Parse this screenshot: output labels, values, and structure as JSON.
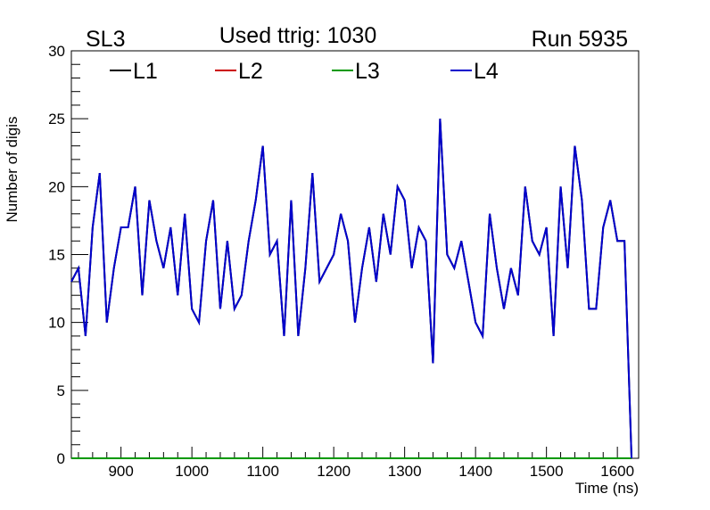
{
  "chart_data": {
    "type": "line",
    "title": "Used ttrig: 1030",
    "corner_left": "SL3",
    "corner_right": "Run 5935",
    "xlabel": "Time (ns)",
    "ylabel": "Number of digis",
    "xlim": [
      830,
      1630
    ],
    "ylim": [
      0,
      30
    ],
    "xticks": [
      900,
      1000,
      1100,
      1200,
      1300,
      1400,
      1500,
      1600
    ],
    "yticks": [
      0,
      5,
      10,
      15,
      20,
      25,
      30
    ],
    "grid": false,
    "legend_position": "top",
    "x_start": 830,
    "x_step": 10,
    "series": [
      {
        "name": "L1",
        "color": "#000000",
        "values": [
          13,
          14,
          9,
          17,
          21,
          10,
          14,
          17,
          17,
          20,
          12,
          19,
          16,
          14,
          17,
          12,
          18,
          11,
          10,
          16,
          19,
          11,
          16,
          11,
          12,
          16,
          19,
          23,
          15,
          16,
          9,
          19,
          9,
          14,
          21,
          13,
          14,
          15,
          18,
          16,
          10,
          14,
          17,
          13,
          18,
          15,
          20,
          19,
          14,
          17,
          16,
          7,
          25,
          15,
          14,
          16,
          13,
          10,
          9,
          18,
          14,
          11,
          14,
          12,
          20,
          16,
          15,
          17,
          9,
          20,
          14,
          23,
          19,
          11,
          11,
          17,
          19,
          16,
          16,
          0
        ]
      },
      {
        "name": "L2",
        "color": "#cc0000",
        "values": [
          0,
          0,
          0,
          0,
          0,
          0,
          0,
          0,
          0,
          0,
          0,
          0,
          0,
          0,
          0,
          0,
          0,
          0,
          0,
          0,
          0,
          0,
          0,
          0,
          0,
          0,
          0,
          0,
          0,
          0,
          0,
          0,
          0,
          0,
          0,
          0,
          0,
          0,
          0,
          0,
          0,
          0,
          0,
          0,
          0,
          0,
          0,
          0,
          0,
          0,
          0,
          0,
          0,
          0,
          0,
          0,
          0,
          0,
          0,
          0,
          0,
          0,
          0,
          0,
          0,
          0,
          0,
          0,
          0,
          0,
          0,
          0,
          0,
          0,
          0,
          0,
          0,
          0,
          0,
          0
        ]
      },
      {
        "name": "L3",
        "color": "#009900",
        "values": [
          0,
          0,
          0,
          0,
          0,
          0,
          0,
          0,
          0,
          0,
          0,
          0,
          0,
          0,
          0,
          0,
          0,
          0,
          0,
          0,
          0,
          0,
          0,
          0,
          0,
          0,
          0,
          0,
          0,
          0,
          0,
          0,
          0,
          0,
          0,
          0,
          0,
          0,
          0,
          0,
          0,
          0,
          0,
          0,
          0,
          0,
          0,
          0,
          0,
          0,
          0,
          0,
          0,
          0,
          0,
          0,
          0,
          0,
          0,
          0,
          0,
          0,
          0,
          0,
          0,
          0,
          0,
          0,
          0,
          0,
          0,
          0,
          0,
          0,
          0,
          0,
          0,
          0,
          0,
          0
        ]
      },
      {
        "name": "L4",
        "color": "#0000cc",
        "values": [
          13,
          14,
          9,
          17,
          21,
          10,
          14,
          17,
          17,
          20,
          12,
          19,
          16,
          14,
          17,
          12,
          18,
          11,
          10,
          16,
          19,
          11,
          16,
          11,
          12,
          16,
          19,
          23,
          15,
          16,
          9,
          19,
          9,
          14,
          21,
          13,
          14,
          15,
          18,
          16,
          10,
          14,
          17,
          13,
          18,
          15,
          20,
          19,
          14,
          17,
          16,
          7,
          25,
          15,
          14,
          16,
          13,
          10,
          9,
          18,
          14,
          11,
          14,
          12,
          20,
          16,
          15,
          17,
          9,
          20,
          14,
          23,
          19,
          11,
          11,
          17,
          19,
          16,
          16,
          0
        ]
      }
    ]
  }
}
